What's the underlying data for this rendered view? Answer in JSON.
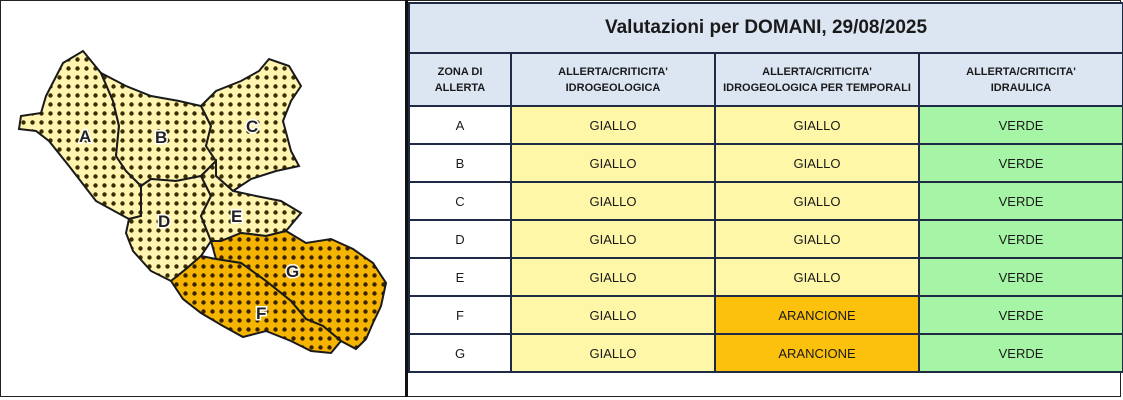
{
  "map": {
    "zones": [
      {
        "id": "A",
        "level_color": "#fff4b0"
      },
      {
        "id": "B",
        "level_color": "#fff4b0"
      },
      {
        "id": "C",
        "level_color": "#fff4b0"
      },
      {
        "id": "D",
        "level_color": "#fff4b0"
      },
      {
        "id": "E",
        "level_color": "#fff4b0"
      },
      {
        "id": "F",
        "level_color": "#f5b400"
      },
      {
        "id": "G",
        "level_color": "#f5b400"
      }
    ]
  },
  "table": {
    "title": "Valutazioni per DOMANI, 29/08/2025",
    "headers": {
      "zone": [
        "ZONA DI",
        "ALLERTA"
      ],
      "idrogeologica": [
        "ALLERTA/CRITICITA'",
        "IDROGEOLOGICA"
      ],
      "temporali": [
        "ALLERTA/CRITICITA'",
        "IDROGEOLOGICA PER TEMPORALI"
      ],
      "idraulica": [
        "ALLERTA/CRITICITA'",
        "IDRAULICA"
      ]
    },
    "rows": [
      {
        "zone": "A",
        "idrogeologica": "GIALLO",
        "temporali": "GIALLO",
        "idraulica": "VERDE"
      },
      {
        "zone": "B",
        "idrogeologica": "GIALLO",
        "temporali": "GIALLO",
        "idraulica": "VERDE"
      },
      {
        "zone": "C",
        "idrogeologica": "GIALLO",
        "temporali": "GIALLO",
        "idraulica": "VERDE"
      },
      {
        "zone": "D",
        "idrogeologica": "GIALLO",
        "temporali": "GIALLO",
        "idraulica": "VERDE"
      },
      {
        "zone": "E",
        "idrogeologica": "GIALLO",
        "temporali": "GIALLO",
        "idraulica": "VERDE"
      },
      {
        "zone": "F",
        "idrogeologica": "GIALLO",
        "temporali": "ARANCIONE",
        "idraulica": "VERDE"
      },
      {
        "zone": "G",
        "idrogeologica": "GIALLO",
        "temporali": "ARANCIONE",
        "idraulica": "VERDE"
      }
    ]
  },
  "colors": {
    "header_bg": "#dce6f2",
    "GIALLO": "#fff7a8",
    "ARANCIONE": "#fcc10d",
    "VERDE": "#a6f5a6"
  }
}
